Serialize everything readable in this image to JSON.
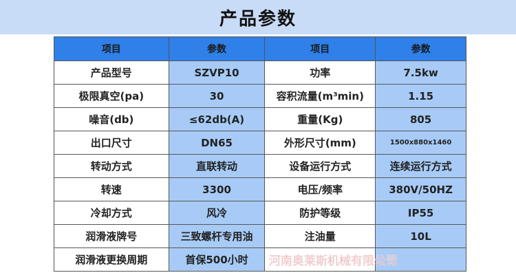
{
  "title": "产品参数",
  "headers": [
    "项目",
    "参数",
    "项目",
    "参数"
  ],
  "rows": [
    [
      "产品型号",
      "SZVP10",
      "功率",
      "7.5kw"
    ],
    [
      "极限真空(pa)",
      "30",
      "容积流量(m³min)",
      "1.15"
    ],
    [
      "噪音(db)",
      "≤62db(A)",
      "重量(Kg)",
      "805"
    ],
    [
      "出口尺寸",
      "DN65",
      "外形尺寸(mm)",
      "1500x880x1460"
    ],
    [
      "转动方式",
      "直联转动",
      "设备运行方式",
      "连续运行方式"
    ],
    [
      "转速",
      "3300",
      "电压/频率",
      "380V/50HZ"
    ],
    [
      "冷却方式",
      "风冷",
      "防护等级",
      "IP55"
    ],
    [
      "润滑液牌号",
      "三致螺杆专用油",
      "注油量",
      "10L"
    ],
    [
      "润滑液更换周期",
      "首保500小时",
      "",
      ""
    ]
  ],
  "watermark": "河南奥莱斯机械有限公司"
}
